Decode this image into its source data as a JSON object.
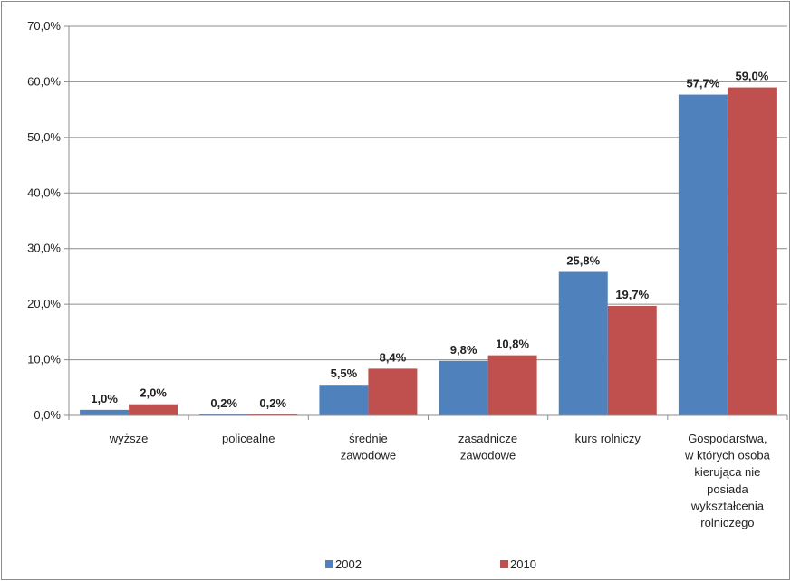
{
  "chart_data": {
    "type": "bar",
    "categories": [
      [
        "wyższe"
      ],
      [
        "policealne"
      ],
      [
        "średnie",
        "zawodowe"
      ],
      [
        "zasadnicze",
        "zawodowe"
      ],
      [
        "kurs rolniczy"
      ],
      [
        "Gospodarstwa,",
        "w których osoba",
        "kierująca nie",
        "posiada",
        "wykształcenia",
        "rolniczego"
      ]
    ],
    "series": [
      {
        "name": "2002",
        "color": "#4f81bd",
        "values": [
          1.0,
          0.2,
          5.5,
          9.8,
          25.8,
          57.7
        ],
        "labels": [
          "1,0%",
          "0,2%",
          "5,5%",
          "9,8%",
          "25,8%",
          "57,7%"
        ]
      },
      {
        "name": "2010",
        "color": "#c0504d",
        "values": [
          2.0,
          0.2,
          8.4,
          10.8,
          19.7,
          59.0
        ],
        "labels": [
          "2,0%",
          "0,2%",
          "8,4%",
          "10,8%",
          "19,7%",
          "59,0%"
        ]
      }
    ],
    "yticks": [
      0,
      10,
      20,
      30,
      40,
      50,
      60,
      70
    ],
    "ytick_labels": [
      "0,0%",
      "10,0%",
      "20,0%",
      "30,0%",
      "40,0%",
      "50,0%",
      "60,0%",
      "70,0%"
    ],
    "ylim": [
      0,
      70
    ],
    "grid": true,
    "legend_position": "bottom",
    "title": "",
    "xlabel": "",
    "ylabel": ""
  }
}
